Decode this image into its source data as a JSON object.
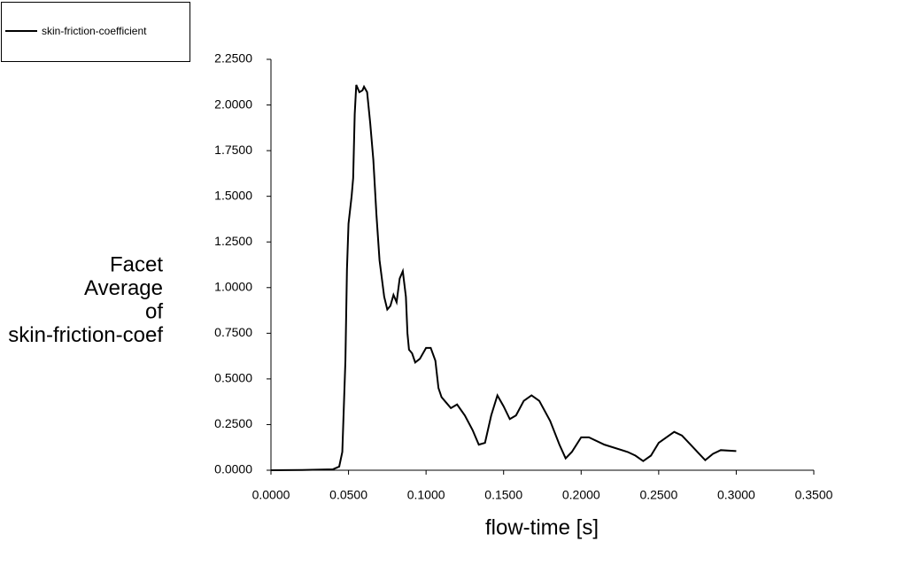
{
  "chart_data": {
    "type": "line",
    "legend_label": "skin-friction-coefficient",
    "y_label_lines": [
      "Facet",
      "Average",
      "of",
      "skin-friction-coef"
    ],
    "x_label": "flow-time [s]",
    "x": [
      0,
      0.02,
      0.04,
      0.044,
      0.046,
      0.048,
      0.049,
      0.05,
      0.052,
      0.053,
      0.054,
      0.055,
      0.057,
      0.059,
      0.06,
      0.062,
      0.064,
      0.066,
      0.068,
      0.07,
      0.073,
      0.075,
      0.077,
      0.079,
      0.081,
      0.083,
      0.085,
      0.087,
      0.088,
      0.089,
      0.091,
      0.093,
      0.096,
      0.1,
      0.103,
      0.106,
      0.108,
      0.11,
      0.113,
      0.116,
      0.12,
      0.125,
      0.13,
      0.134,
      0.138,
      0.142,
      0.146,
      0.15,
      0.154,
      0.158,
      0.163,
      0.168,
      0.173,
      0.18,
      0.186,
      0.19,
      0.194,
      0.2,
      0.205,
      0.215,
      0.23,
      0.235,
      0.24,
      0.245,
      0.25,
      0.26,
      0.265,
      0.275,
      0.28,
      0.285,
      0.29,
      0.3
    ],
    "series": [
      {
        "name": "skin-friction-coefficient",
        "color": "#000000",
        "values": [
          0,
          0.001,
          0.005,
          0.02,
          0.1,
          0.6,
          1.1,
          1.35,
          1.5,
          1.6,
          1.95,
          2.11,
          2.07,
          2.08,
          2.1,
          2.07,
          1.9,
          1.7,
          1.4,
          1.15,
          0.95,
          0.88,
          0.9,
          0.96,
          0.92,
          1.05,
          1.09,
          0.95,
          0.75,
          0.66,
          0.64,
          0.59,
          0.61,
          0.67,
          0.67,
          0.6,
          0.45,
          0.4,
          0.37,
          0.34,
          0.36,
          0.3,
          0.22,
          0.14,
          0.15,
          0.3,
          0.41,
          0.35,
          0.28,
          0.3,
          0.38,
          0.41,
          0.38,
          0.27,
          0.14,
          0.065,
          0.1,
          0.18,
          0.18,
          0.14,
          0.1,
          0.08,
          0.05,
          0.08,
          0.15,
          0.21,
          0.19,
          0.1,
          0.055,
          0.09,
          0.11,
          0.105
        ]
      }
    ],
    "xlim": [
      0,
      0.35
    ],
    "ylim": [
      0,
      2.25
    ],
    "xticks": [
      {
        "value": 0,
        "label": "0.0000"
      },
      {
        "value": 0.05,
        "label": "0.0500"
      },
      {
        "value": 0.1,
        "label": "0.1000"
      },
      {
        "value": 0.15,
        "label": "0.1500"
      },
      {
        "value": 0.2,
        "label": "0.2000"
      },
      {
        "value": 0.25,
        "label": "0.2500"
      },
      {
        "value": 0.3,
        "label": "0.3000"
      },
      {
        "value": 0.35,
        "label": "0.3500"
      }
    ],
    "yticks": [
      {
        "value": 0,
        "label": "0.0000"
      },
      {
        "value": 0.25,
        "label": "0.2500"
      },
      {
        "value": 0.5,
        "label": "0.5000"
      },
      {
        "value": 0.75,
        "label": "0.7500"
      },
      {
        "value": 1,
        "label": "1.0000"
      },
      {
        "value": 1.25,
        "label": "1.2500"
      },
      {
        "value": 1.5,
        "label": "1.5000"
      },
      {
        "value": 1.75,
        "label": "1.7500"
      },
      {
        "value": 2,
        "label": "2.0000"
      },
      {
        "value": 2.25,
        "label": "2.2500"
      }
    ]
  }
}
